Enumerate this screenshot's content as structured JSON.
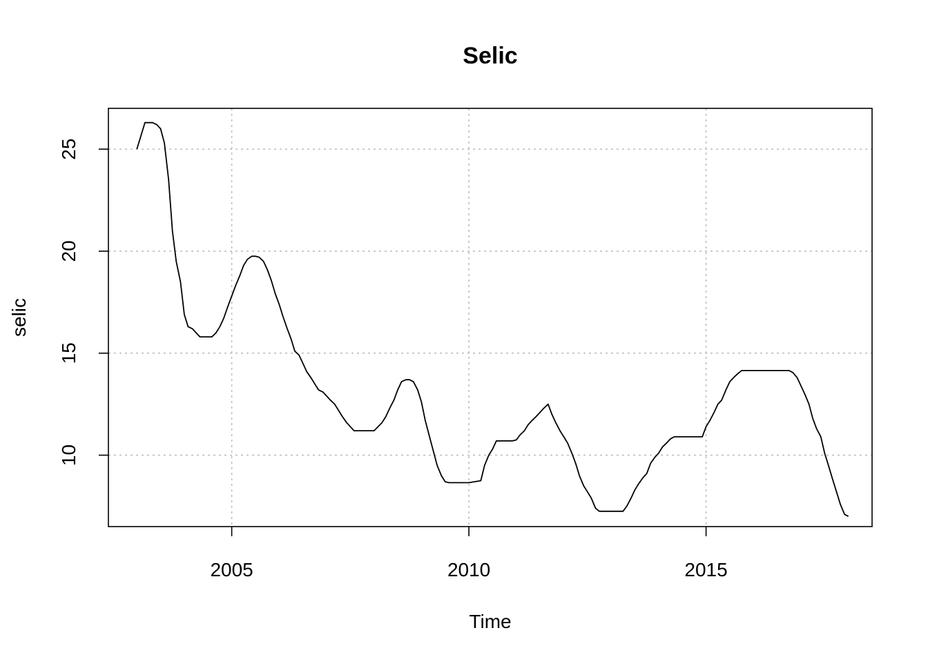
{
  "chart_data": {
    "type": "line",
    "title": "Selic",
    "xlabel": "Time",
    "ylabel": "selic",
    "xlim": [
      2002.4,
      2018.5
    ],
    "ylim": [
      6.5,
      27.0
    ],
    "xticks": [
      2005,
      2010,
      2015
    ],
    "xtick_labels": [
      "2005",
      "2010",
      "2015"
    ],
    "yticks": [
      10,
      15,
      20,
      25
    ],
    "ytick_labels": [
      "10",
      "15",
      "20",
      "25"
    ],
    "grid": true,
    "series": [
      {
        "x": [
          2003.0,
          2003.17,
          2003.33,
          2003.42,
          2003.5,
          2003.58,
          2003.67,
          2003.75,
          2003.83,
          2003.92,
          2004.0,
          2004.08,
          2004.17,
          2004.25,
          2004.33,
          2004.42,
          2004.5,
          2004.58,
          2004.67,
          2004.75,
          2004.83,
          2004.92,
          2005.0,
          2005.08,
          2005.17,
          2005.25,
          2005.33,
          2005.42,
          2005.5,
          2005.58,
          2005.67,
          2005.75,
          2005.83,
          2005.92,
          2006.0,
          2006.08,
          2006.17,
          2006.25,
          2006.33,
          2006.42,
          2006.5,
          2006.58,
          2006.67,
          2006.75,
          2006.83,
          2006.92,
          2007.0,
          2007.08,
          2007.17,
          2007.25,
          2007.33,
          2007.42,
          2007.5,
          2007.58,
          2007.67,
          2007.75,
          2007.83,
          2008.0,
          2008.17,
          2008.25,
          2008.33,
          2008.42,
          2008.5,
          2008.58,
          2008.67,
          2008.75,
          2008.83,
          2008.92,
          2009.0,
          2009.08,
          2009.17,
          2009.25,
          2009.33,
          2009.42,
          2009.5,
          2009.58,
          2010.0,
          2010.25,
          2010.33,
          2010.42,
          2010.5,
          2010.58,
          2010.92,
          2011.0,
          2011.08,
          2011.17,
          2011.25,
          2011.33,
          2011.42,
          2011.5,
          2011.58,
          2011.67,
          2011.75,
          2011.83,
          2011.92,
          2012.0,
          2012.08,
          2012.17,
          2012.25,
          2012.33,
          2012.42,
          2012.5,
          2012.58,
          2012.67,
          2012.75,
          2012.83,
          2013.0,
          2013.17,
          2013.25,
          2013.33,
          2013.42,
          2013.5,
          2013.58,
          2013.67,
          2013.75,
          2013.83,
          2013.92,
          2014.0,
          2014.08,
          2014.17,
          2014.25,
          2014.33,
          2014.42,
          2014.5,
          2014.58,
          2014.92,
          2015.0,
          2015.08,
          2015.17,
          2015.25,
          2015.33,
          2015.42,
          2015.5,
          2015.58,
          2015.67,
          2015.75,
          2016.0,
          2016.5,
          2016.75,
          2016.83,
          2016.92,
          2017.0,
          2017.08,
          2017.17,
          2017.25,
          2017.33,
          2017.42,
          2017.5,
          2017.58,
          2017.67,
          2017.75,
          2017.83,
          2017.92,
          2018.0
        ],
        "values": [
          25.0,
          26.3,
          26.3,
          26.2,
          26.0,
          25.3,
          23.5,
          21.0,
          19.5,
          18.5,
          16.9,
          16.3,
          16.2,
          16.0,
          15.8,
          15.8,
          15.8,
          15.8,
          16.0,
          16.3,
          16.7,
          17.3,
          17.8,
          18.3,
          18.8,
          19.3,
          19.6,
          19.75,
          19.75,
          19.7,
          19.5,
          19.1,
          18.6,
          17.9,
          17.4,
          16.8,
          16.2,
          15.7,
          15.1,
          14.9,
          14.5,
          14.1,
          13.8,
          13.5,
          13.2,
          13.1,
          12.9,
          12.7,
          12.5,
          12.2,
          11.9,
          11.6,
          11.4,
          11.2,
          11.2,
          11.2,
          11.2,
          11.2,
          11.6,
          11.9,
          12.3,
          12.7,
          13.2,
          13.6,
          13.7,
          13.7,
          13.6,
          13.2,
          12.6,
          11.7,
          10.9,
          10.2,
          9.5,
          9.0,
          8.7,
          8.65,
          8.65,
          8.75,
          9.5,
          10.0,
          10.3,
          10.7,
          10.7,
          10.75,
          11.0,
          11.2,
          11.5,
          11.7,
          11.9,
          12.1,
          12.3,
          12.5,
          12.0,
          11.6,
          11.2,
          10.9,
          10.6,
          10.1,
          9.6,
          9.0,
          8.5,
          8.2,
          7.9,
          7.4,
          7.25,
          7.25,
          7.25,
          7.25,
          7.25,
          7.5,
          7.9,
          8.3,
          8.6,
          8.9,
          9.1,
          9.6,
          9.9,
          10.1,
          10.4,
          10.6,
          10.8,
          10.9,
          10.9,
          10.9,
          10.9,
          10.9,
          11.4,
          11.7,
          12.1,
          12.5,
          12.7,
          13.2,
          13.6,
          13.8,
          14.0,
          14.15,
          14.15,
          14.15,
          14.15,
          14.05,
          13.8,
          13.4,
          13.0,
          12.5,
          11.8,
          11.3,
          10.9,
          10.1,
          9.5,
          8.8,
          8.2,
          7.6,
          7.1,
          7.0
        ]
      }
    ]
  }
}
